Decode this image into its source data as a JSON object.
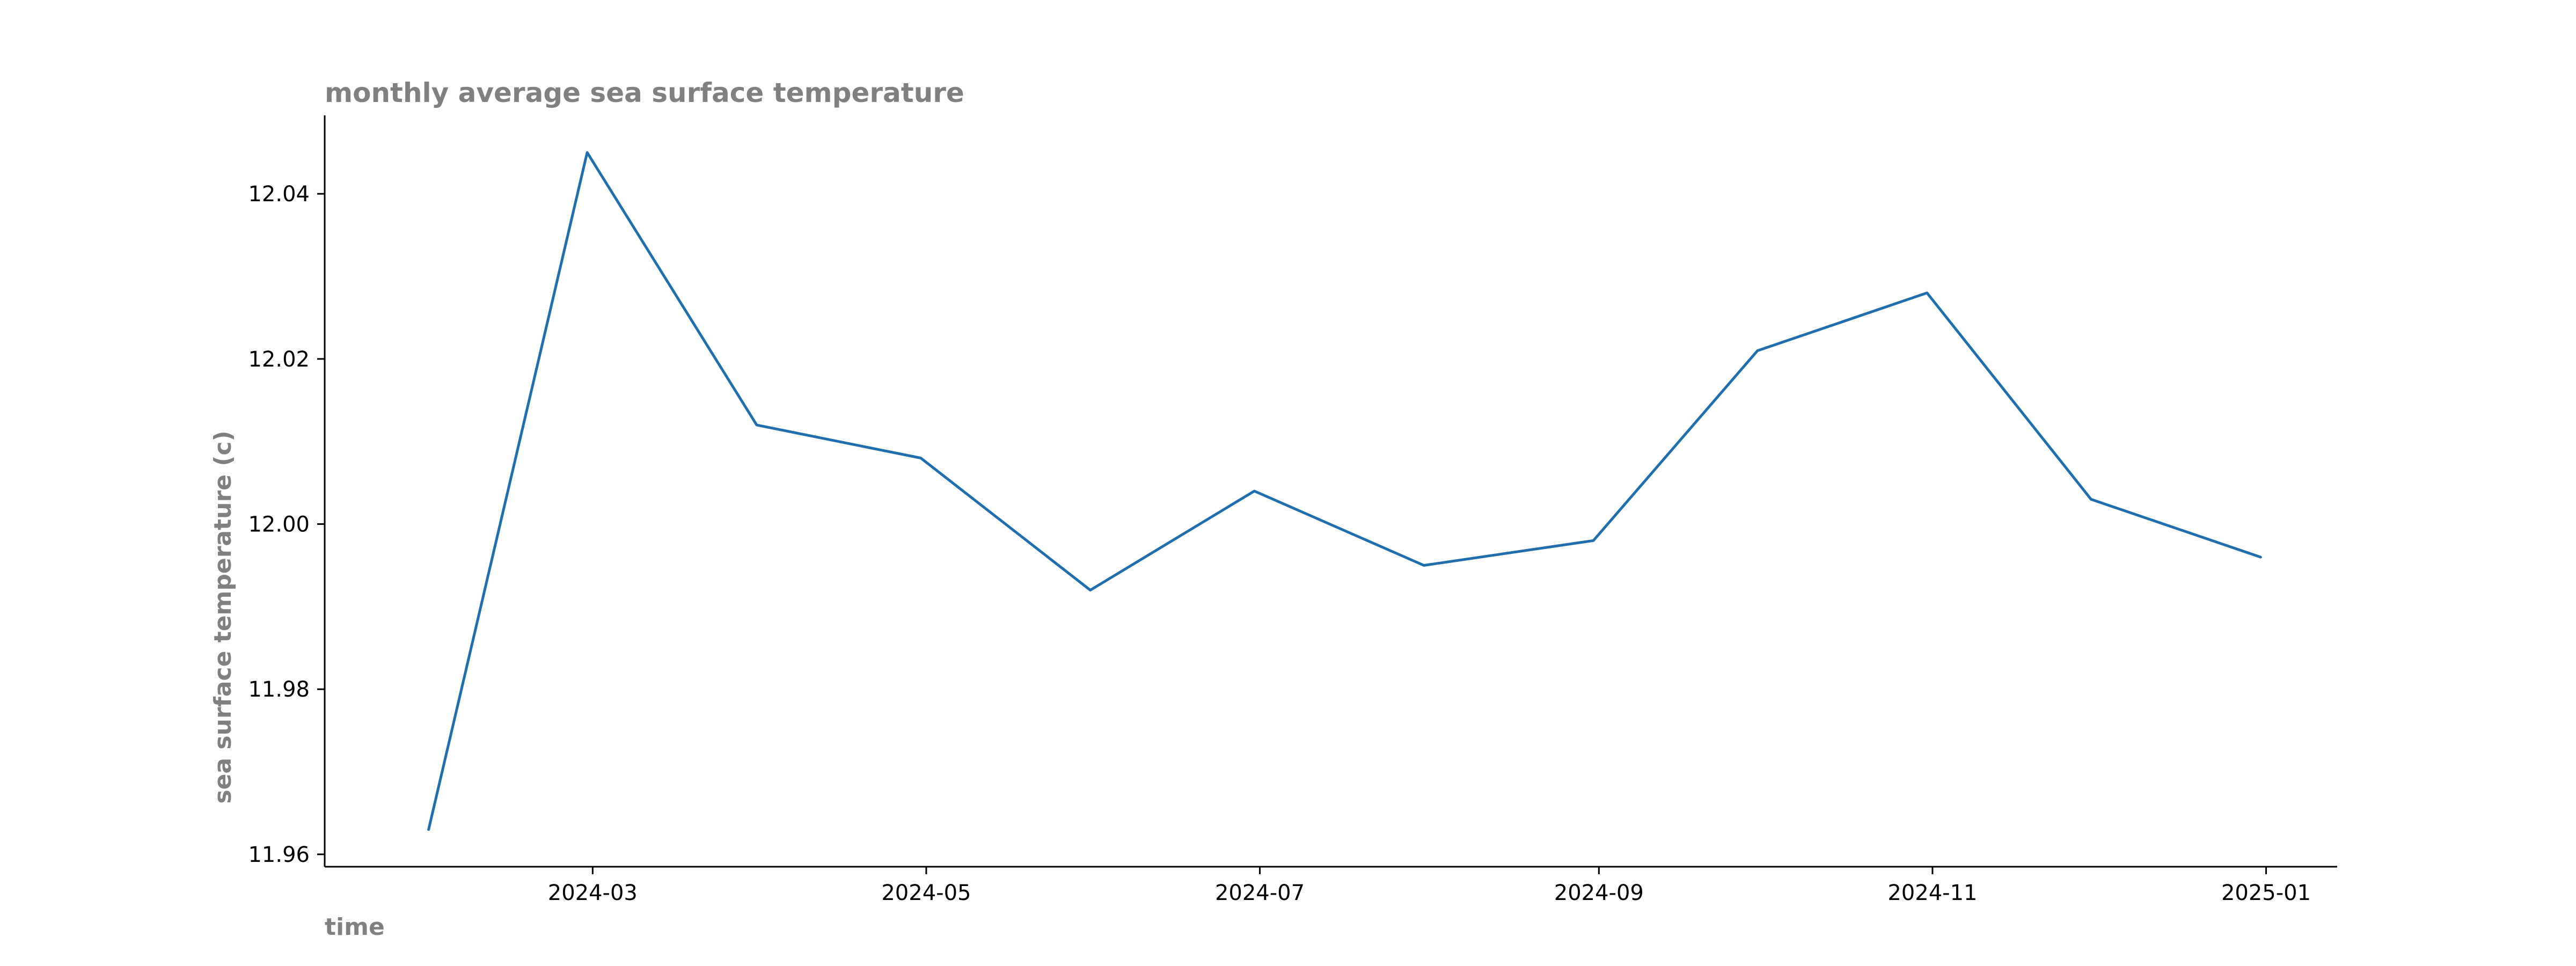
{
  "chart_data": {
    "type": "line",
    "title": "monthly average sea surface temperature",
    "xlabel": "time",
    "ylabel": "sea surface temperature (c)",
    "x": [
      "2024-01-31",
      "2024-02-29",
      "2024-03-31",
      "2024-04-30",
      "2024-05-31",
      "2024-06-30",
      "2024-07-31",
      "2024-08-31",
      "2024-09-30",
      "2024-10-31",
      "2024-11-30",
      "2024-12-31"
    ],
    "series": [
      {
        "color": "#1f6fae",
        "values": [
          11.963,
          12.045,
          12.012,
          12.008,
          11.992,
          12.004,
          11.995,
          11.998,
          12.021,
          12.028,
          12.003,
          11.996
        ]
      }
    ],
    "xlim": [
      "2024-01-12",
      "2025-01-14"
    ],
    "ylim": [
      11.9585,
      12.0495
    ],
    "xticks": [
      "2024-03",
      "2024-05",
      "2024-07",
      "2024-09",
      "2024-11",
      "2025-01"
    ],
    "yticks": [
      "11.96",
      "11.98",
      "12.00",
      "12.02",
      "12.04"
    ],
    "grid": false,
    "legend": "none"
  }
}
